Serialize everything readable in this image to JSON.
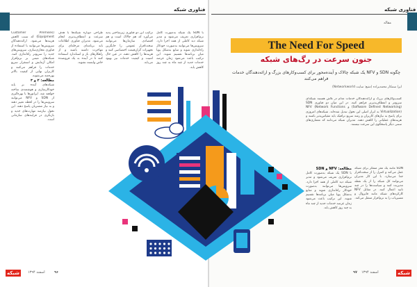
{
  "header": {
    "left_section": "فناوری شبکه",
    "right_section": "فناوری شبکه",
    "issue_label": "مقاله"
  },
  "article": {
    "title_en": "The Need For Speed",
    "title_fa": "جنون سرعت در رگ‌های شبکه",
    "lede": "چگونه SDN و NFV یک شبکه چالاک و آینده‌محور برای کسب‌وکارهای بزرگ و ارائه‌دهندگان خدمات فراهم می‌کنند",
    "author": "ایزا سمکار محمدیزاده (منبع: سایت Networkworld)"
  },
  "columns": {
    "right_intro": "کسب‌وکارهای بزرگ و ارائه‌دهندگان خدمات مدام در تلاش هستند شبکه‌ای سریع‌تر و انعطاف‌پذیرتر فراهم کنند. در این میان دو فناوری SDN (Software Defined Networking) و NFV (Network Functions Virtualization) به ابزار اصلی این تحول تبدیل شده‌اند. شبکه‌های امروزی برای پاسخ به نیازهای کاربران و رشد سریع ترافیک باید مقیاس‌پذیر باشند و هزینه‌های عملیاتی را کاهش دهند. مدیران شبکه می‌دانند که معماری‌های سنتی دیگر پاسخگوی این سرعت نیستند.",
    "right_col1": "SDN مانند یک مغز متفکر برای شبکه عمل می‌کند و کنترل را از سخت‌افزار جدا می‌سازد. با این کار مدیران می‌توانند کل شبکه را از یک نقطه مدیریت کنند و سیاست‌ها را در چند ثانیه اعمال کنند. در مقابل NFV کارکردهای شبکه مانند فایروال و مسیریاب را به نرم‌افزار منتقل می‌کند.",
    "right_col2": "با SDN یک شبکه به‌صورت کامل نرم‌افزاری تعریف می‌شود و مدیر شبکه دید کاملی از همه اجزا دارد. سرویس‌ها می‌توانند به‌صورت خودکار راه‌اندازی شوند و منابع به‌شکل پویا میان برنامه‌ها تقسیم شوند. این ترکیب باعث می‌شود زمان عرضه خدمات جدید از چند ماه به چند روز کاهش یابد.",
    "sub_heading": "مطالعه: NFV و SDN",
    "mid_col": "ترکیب این دو فناوری زیرساختی پدید می‌آورد که هم چالاک است و هم اقتصادی. سازمان‌ها می‌توانند سخت‌افزار عمومی را جایگزین تجهیزات گران‌قیمت اختصاصی کنند و هزینه‌ها را کاهش دهند. در عین حال امنیت و کیفیت خدمات نیز بهبود می‌یابد.",
    "left_col1": "(Customer Premises Equipment) که سبب کاهش هزینه‌ها می‌شود. ارائه‌دهندگان سرویس‌ها می‌توانند با استفاده از فناوری مجازی‌سازی، سرویس‌های جدید را سریع‌تر راه‌اندازی کنند. شبکه‌های مبتنی بر نرم‌افزار امکان آزمایش و استقرار سریع خدمات را فراهم می‌کنند و کاربران نهایی از کیفیت بالاتر بهره‌مند می‌شوند.",
    "left_sub": "مطالعه: ۲ و ۳",
    "left_col1b": "شبکه‌های آینده بر پایه خودکارسازی و هوشمندی ساخته خواهند شد. اپراتورها با بهره‌گیری از SDN و NFV می‌توانند سرویس‌ها را در لحظه تغییر دهند و به نیاز مشتریان پاسخ دهند. این تحول نیازمند مهارت‌های جدید و بازنگری در فرایندهای سازمانی است.",
    "left_col2": "طراحی دوباره شبکه‌ها با هدف سرعت و انعطاف‌پذیری انجام می‌شود. مدیران فناوری اطلاعات باید برنامه‌ای مرحله‌ای برای مهاجرت داشته باشند و از راهکارهای باز و استاندارد استفاده کنند تا در آینده به یک فروشنده خاص وابسته نشوند."
  },
  "footer": {
    "left_logo": "شبکه",
    "left_date": "اسفند ۱۳۹۴",
    "left_page": "۹۶",
    "right_logo": "شبکه",
    "right_date": "اسفند ۱۳۹۴",
    "right_page": "۹۷"
  },
  "colors": {
    "accent_blue": "#1d5a73",
    "title_yellow": "#f7b82a",
    "title_red": "#c0102a",
    "art_navy": "#1d3a8a",
    "art_sky": "#2bb3e6",
    "art_orange": "#f59a1b",
    "art_pink": "#e9347b",
    "footer_red": "#e1261c"
  },
  "illustration": {
    "icon": "network-isometric-illustration"
  }
}
